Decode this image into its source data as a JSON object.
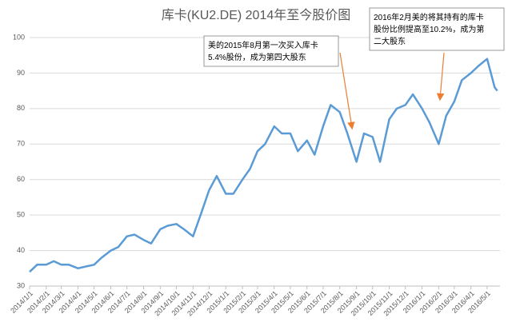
{
  "chart_data": {
    "type": "line",
    "title": "库卡(KU2.DE) 2014年至今股价图",
    "x": [
      "2014/1/1",
      "2014/1/15",
      "2014/2/1",
      "2014/2/15",
      "2014/3/1",
      "2014/3/15",
      "2014/4/1",
      "2014/4/15",
      "2014/5/1",
      "2014/5/15",
      "2014/6/1",
      "2014/6/15",
      "2014/7/1",
      "2014/7/15",
      "2014/8/1",
      "2014/8/15",
      "2014/9/1",
      "2014/9/15",
      "2014/10/1",
      "2014/10/15",
      "2014/11/1",
      "2014/11/15",
      "2014/12/1",
      "2014/12/15",
      "2015/1/1",
      "2015/1/15",
      "2015/2/1",
      "2015/2/15",
      "2015/3/1",
      "2015/3/15",
      "2015/4/1",
      "2015/4/15",
      "2015/5/1",
      "2015/5/15",
      "2015/6/1",
      "2015/6/15",
      "2015/7/1",
      "2015/7/15",
      "2015/8/1",
      "2015/8/15",
      "2015/9/1",
      "2015/9/15",
      "2015/10/1",
      "2015/10/15",
      "2015/11/1",
      "2015/11/15",
      "2015/12/1",
      "2015/12/15",
      "2016/1/1",
      "2016/1/15",
      "2016/2/1",
      "2016/2/15",
      "2016/3/1",
      "2016/3/15",
      "2016/4/1",
      "2016/4/15",
      "2016/5/1",
      "2016/5/15",
      "2016/5/20"
    ],
    "values": [
      34,
      36,
      36,
      37,
      36,
      36,
      35,
      35.5,
      36,
      38,
      40,
      41,
      44,
      44.5,
      43,
      42,
      46,
      47,
      47.5,
      46,
      44,
      50,
      57,
      61,
      56,
      56,
      60,
      63,
      68,
      70,
      75,
      73,
      73,
      68,
      71,
      67,
      75,
      81,
      79,
      73,
      65,
      73,
      72,
      65,
      77,
      80,
      81,
      84,
      80,
      76,
      70,
      78,
      82,
      88,
      90,
      92,
      94,
      86,
      85
    ],
    "color": "#5b9bd5",
    "xlim": [
      "2014/1/1",
      "2016/5/25"
    ],
    "xticks": [
      "2014/1/1",
      "2014/2/1",
      "2014/3/1",
      "2014/4/1",
      "2014/5/1",
      "2014/6/1",
      "2014/7/1",
      "2014/8/1",
      "2014/9/1",
      "2014/10/1",
      "2014/11/1",
      "2014/12/1",
      "2015/1/1",
      "2015/2/1",
      "2015/3/1",
      "2015/4/1",
      "2015/5/1",
      "2015/6/1",
      "2015/7/1",
      "2015/8/1",
      "2015/9/1",
      "2015/10/1",
      "2015/11/1",
      "2015/12/1",
      "2016/1/1",
      "2016/2/1",
      "2016/3/1",
      "2016/4/1",
      "2016/5/1"
    ],
    "ylim": [
      30,
      100
    ],
    "yticks": [
      30,
      40,
      50,
      60,
      70,
      80,
      90,
      100
    ],
    "grid": true,
    "annotations": [
      {
        "lines": [
          "美的2015年8月第一次买入库卡",
          "5.4%股份，成为第四大股东"
        ]
      },
      {
        "lines": [
          "2016年2月美的将其持有的库卡",
          "股份比例提高至10.2%，成为第",
          "二大股东"
        ]
      }
    ]
  }
}
